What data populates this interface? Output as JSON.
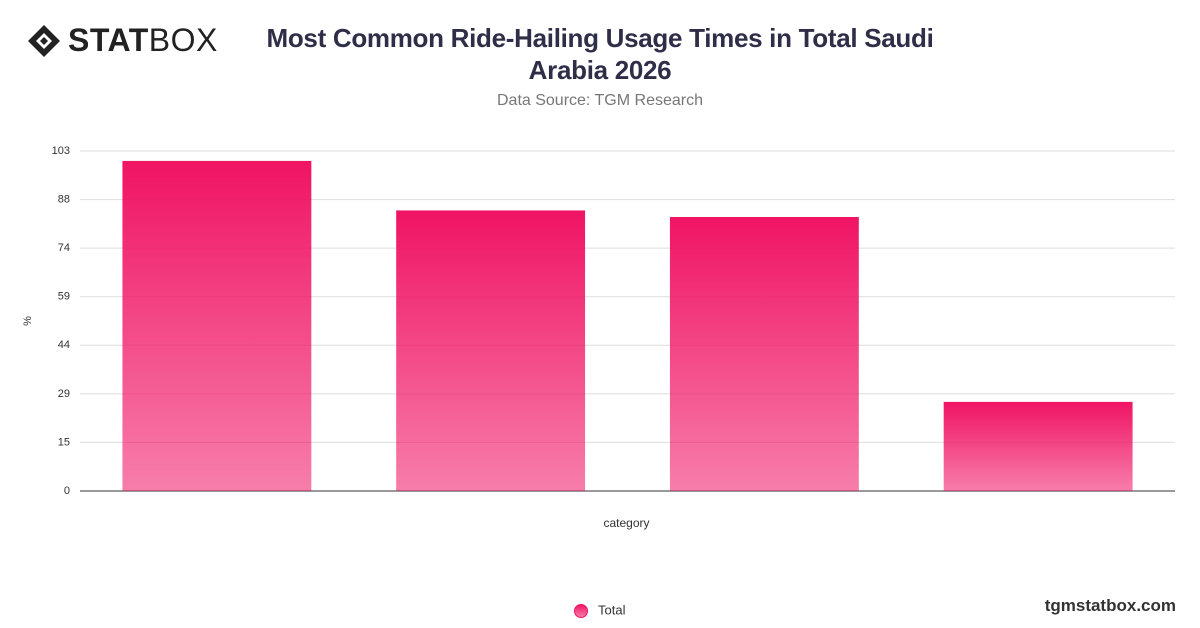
{
  "logo": {
    "strong": "STAT",
    "light": "BOX"
  },
  "footer": "tgmstatbox.com",
  "chart_data": {
    "type": "bar",
    "title": "Most Common Ride-Hailing Usage Times in Total Saudi Arabia 2026",
    "subtitle": "Data Source: TGM Research",
    "x_label": "category",
    "y_label": "%",
    "categories": [
      null,
      null,
      null,
      null
    ],
    "series": [
      {
        "name": "Total",
        "color": "#f01464",
        "values": [
          100,
          85,
          83,
          27
        ]
      }
    ],
    "ylim": [
      0,
      103
    ],
    "yticks": [
      0,
      {
        "value": 14.714,
        "label": "15"
      },
      {
        "value": 29.429,
        "label": "29"
      },
      {
        "value": 44.143,
        "label": "44"
      },
      {
        "value": 58.857,
        "label": "59"
      },
      {
        "value": 73.571,
        "label": "74"
      },
      {
        "value": 88.286,
        "label": "88"
      },
      103
    ],
    "grid": true,
    "legend": "bottom"
  }
}
